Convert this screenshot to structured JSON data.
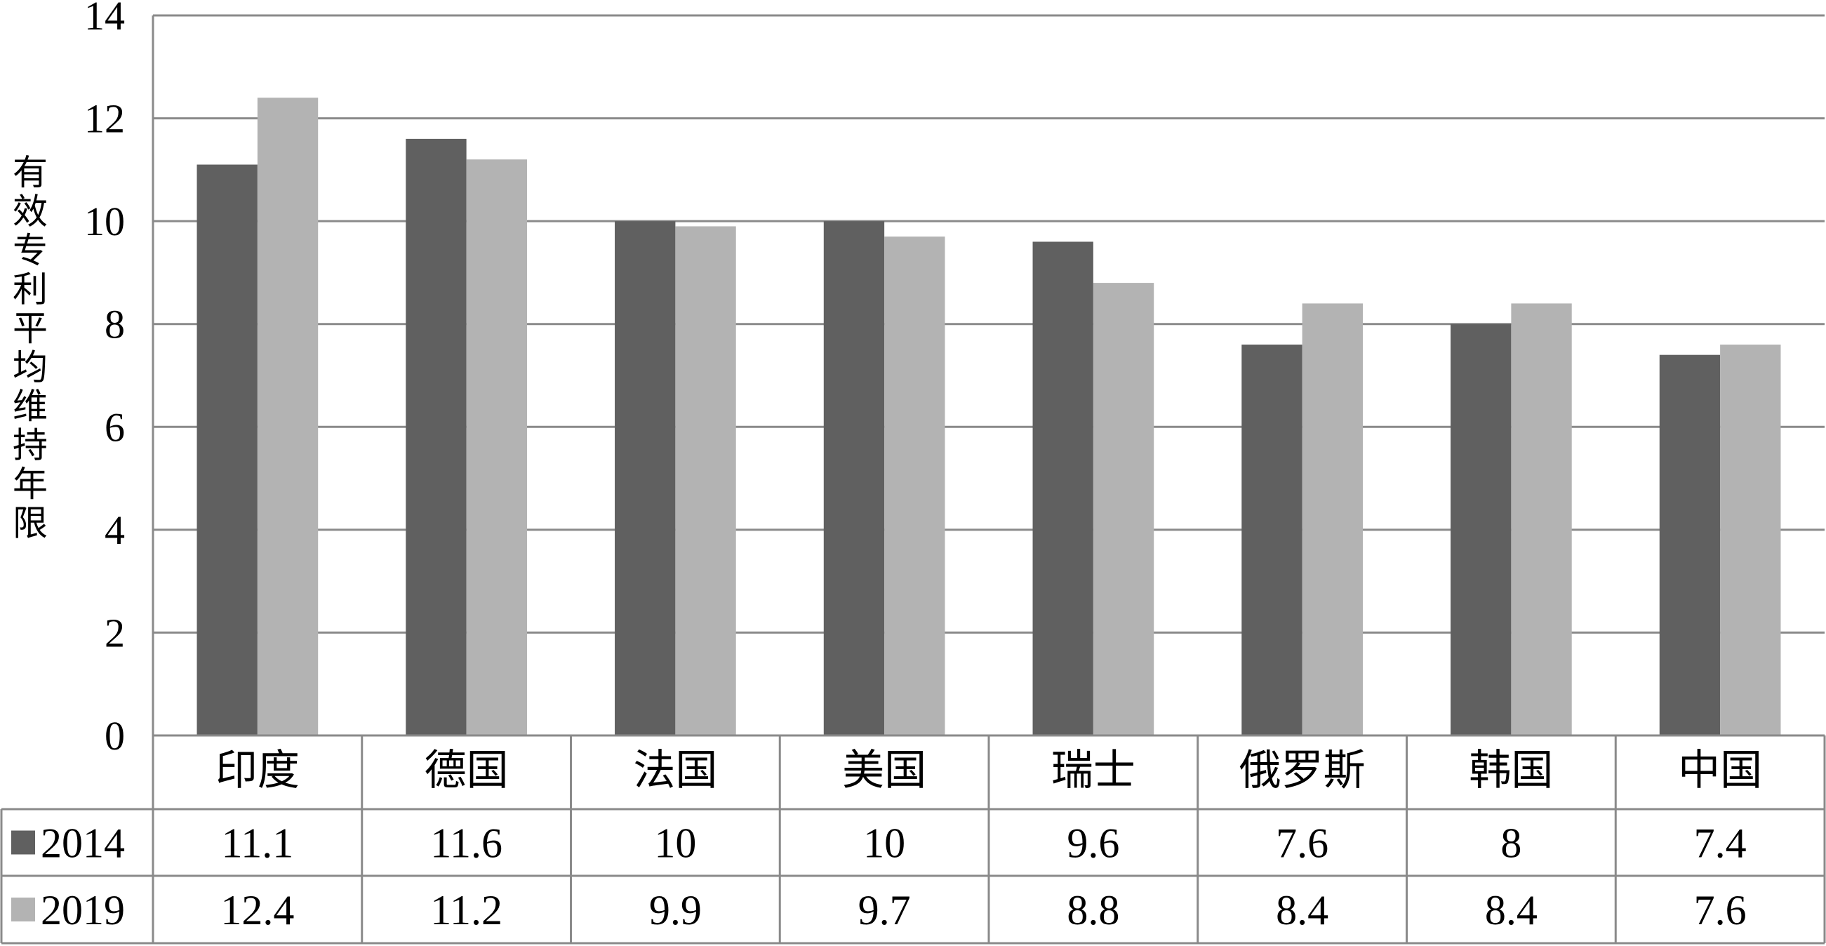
{
  "chart_data": {
    "type": "bar",
    "ylabel": "有效专利平均维持年限",
    "xlabel": "",
    "ylim": [
      0,
      14
    ],
    "yticks": [
      0,
      2,
      4,
      6,
      8,
      10,
      12,
      14
    ],
    "grid": true,
    "legend": "data-table-left",
    "categories": [
      "印度",
      "德国",
      "法国",
      "美国",
      "瑞士",
      "俄罗斯",
      "韩国",
      "中国"
    ],
    "series": [
      {
        "name": "2014",
        "color": "#606060",
        "values": [
          11.1,
          11.6,
          10,
          10,
          9.6,
          7.6,
          8,
          7.4
        ],
        "labels": [
          "11.1",
          "11.6",
          "10",
          "10",
          "9.6",
          "7.6",
          "8",
          "7.4"
        ]
      },
      {
        "name": "2019",
        "color": "#b3b3b3",
        "values": [
          12.4,
          11.2,
          9.9,
          9.7,
          8.8,
          8.4,
          8.4,
          7.6
        ],
        "labels": [
          "12.4",
          "11.2",
          "9.9",
          "9.7",
          "8.8",
          "8.4",
          "8.4",
          "7.6"
        ]
      }
    ]
  }
}
